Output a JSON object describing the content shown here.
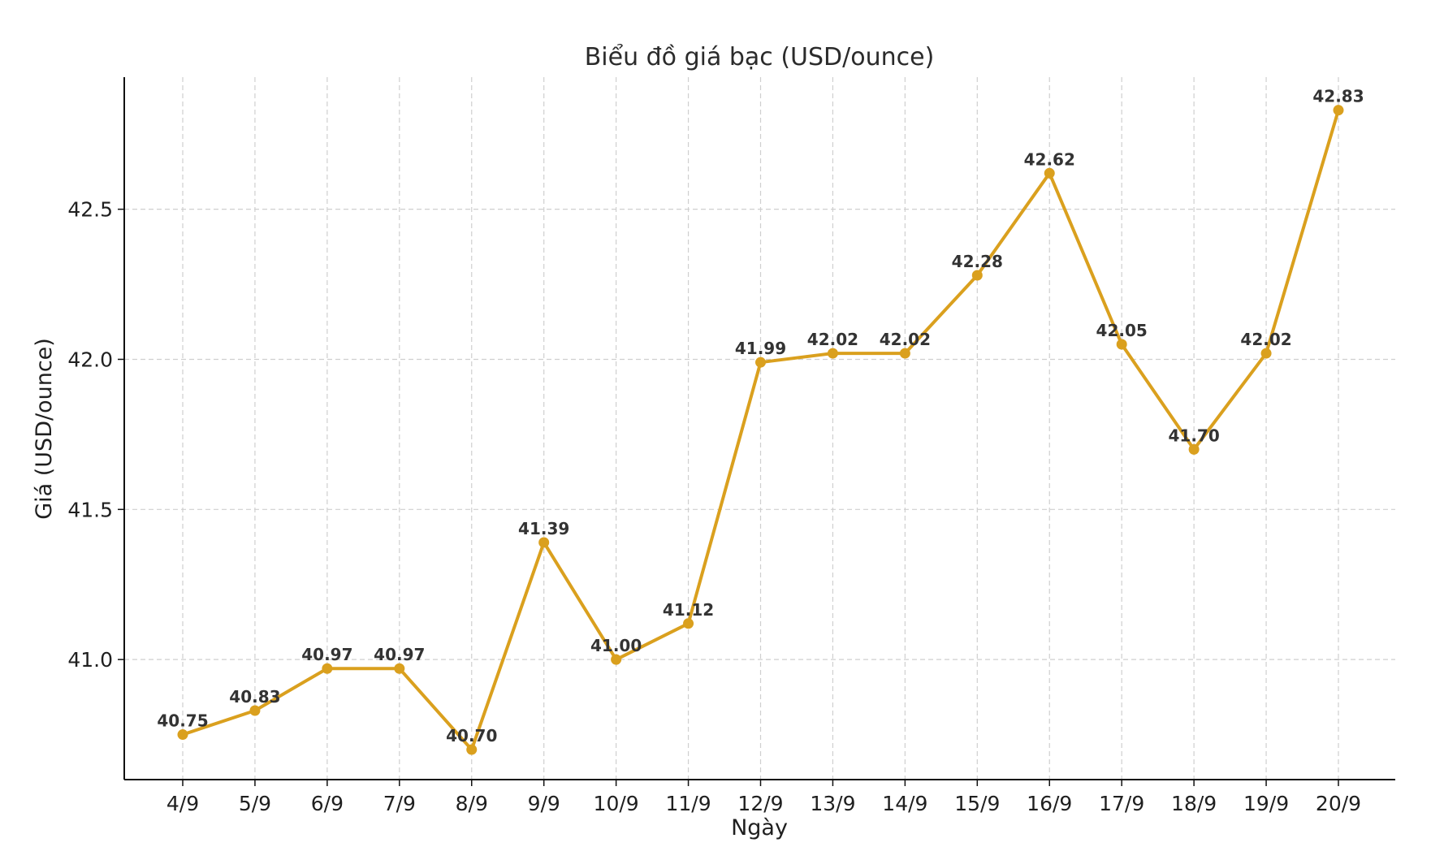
{
  "chart_data": {
    "type": "line",
    "title": "Biểu đồ giá bạc (USD/ounce)",
    "xlabel": "Ngày",
    "ylabel": "Giá (USD/ounce)",
    "categories": [
      "4/9",
      "5/9",
      "6/9",
      "7/9",
      "8/9",
      "9/9",
      "10/9",
      "11/9",
      "12/9",
      "13/9",
      "14/9",
      "15/9",
      "16/9",
      "17/9",
      "18/9",
      "19/9",
      "20/9"
    ],
    "values": [
      40.75,
      40.83,
      40.97,
      40.97,
      40.7,
      41.39,
      41.0,
      41.12,
      41.99,
      42.02,
      42.02,
      42.28,
      42.62,
      42.05,
      41.7,
      42.02,
      42.83
    ],
    "data_labels": [
      "40.75",
      "40.83",
      "40.97",
      "40.97",
      "40.70",
      "41.39",
      "41.00",
      "41.12",
      "41.99",
      "42.02",
      "42.02",
      "42.28",
      "42.62",
      "42.05",
      "41.70",
      "42.02",
      "42.83"
    ],
    "yticks": [
      "41.0",
      "41.5",
      "42.0",
      "42.5"
    ],
    "ytick_values": [
      41.0,
      41.5,
      42.0,
      42.5
    ],
    "ylim": [
      40.6,
      42.94
    ],
    "grid": true,
    "line_color": "#DAA01E",
    "marker": "circle"
  }
}
